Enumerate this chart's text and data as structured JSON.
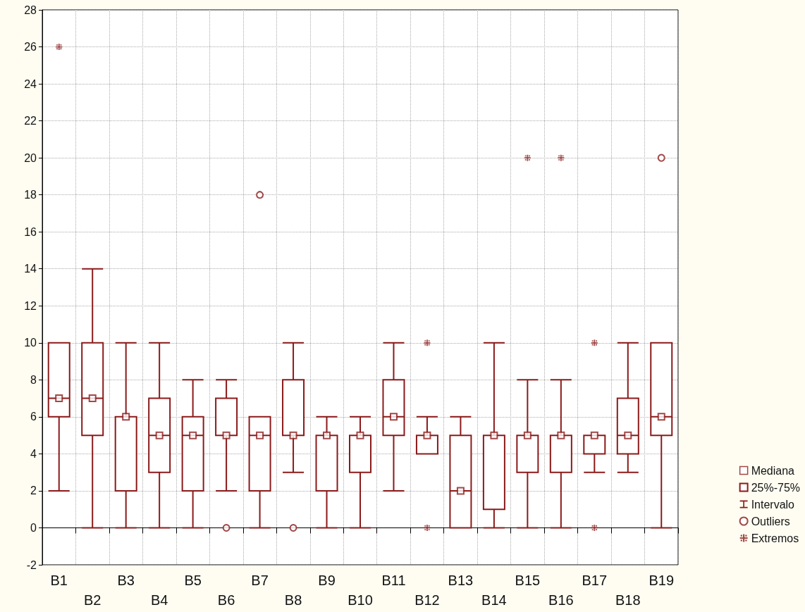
{
  "chart_data": {
    "type": "box",
    "categories": [
      "B1",
      "B2",
      "B3",
      "B4",
      "B5",
      "B6",
      "B7",
      "B8",
      "B9",
      "B10",
      "B11",
      "B12",
      "B13",
      "B14",
      "B15",
      "B16",
      "B17",
      "B18",
      "B19"
    ],
    "ylim": [
      -2,
      28
    ],
    "yticks": [
      -2,
      0,
      2,
      4,
      6,
      8,
      10,
      12,
      14,
      16,
      18,
      20,
      22,
      24,
      26,
      28
    ],
    "grid": true,
    "legend": "right",
    "annotations": [
      "Intervalo"
    ],
    "series": [
      {
        "type": "scatter",
        "name": "Mediana",
        "color": "#8b1a1a",
        "marker": "square",
        "x": [
          "B1",
          "B2",
          "B3",
          "B4",
          "B5",
          "B6",
          "B7",
          "B8",
          "B9",
          "B10",
          "B11",
          "B12",
          "B13",
          "B14",
          "B15",
          "B16",
          "B17",
          "B18",
          "B19"
        ],
        "values": [
          7,
          7,
          6,
          5,
          5,
          5,
          5,
          5,
          5,
          5,
          6,
          5,
          2,
          5,
          5,
          5,
          5,
          5,
          6
        ]
      },
      {
        "name": "25%-75%",
        "color": "#8b1a1a",
        "boxes": [
          {
            "low": 2,
            "q1": 6,
            "median": 7,
            "q3": 10,
            "high": 10
          },
          {
            "low": 0,
            "q1": 5,
            "median": 7,
            "q3": 10,
            "high": 14
          },
          {
            "low": 0,
            "q1": 2,
            "median": 6,
            "q3": 6,
            "high": 10
          },
          {
            "low": 0,
            "q1": 3,
            "median": 5,
            "q3": 7,
            "high": 10
          },
          {
            "low": 0,
            "q1": 2,
            "median": 5,
            "q3": 6,
            "high": 8
          },
          {
            "low": 2,
            "q1": 5,
            "median": 5,
            "q3": 7,
            "high": 8
          },
          {
            "low": 0,
            "q1": 2,
            "median": 5,
            "q3": 6,
            "high": 6
          },
          {
            "low": 3,
            "q1": 5,
            "median": 5,
            "q3": 8,
            "high": 10
          },
          {
            "low": 0,
            "q1": 2,
            "median": 5,
            "q3": 5,
            "high": 6
          },
          {
            "low": 0,
            "q1": 3,
            "median": 5,
            "q3": 5,
            "high": 6
          },
          {
            "low": 2,
            "q1": 5,
            "median": 6,
            "q3": 8,
            "high": 10
          },
          {
            "low": 4,
            "q1": 4,
            "median": 5,
            "q3": 5,
            "high": 6
          },
          {
            "low": 0,
            "q1": 0,
            "median": 2,
            "q3": 5,
            "high": 6
          },
          {
            "low": 0,
            "q1": 1,
            "median": 5,
            "q3": 5,
            "high": 10
          },
          {
            "low": 0,
            "q1": 3,
            "median": 5,
            "q3": 5,
            "high": 8
          },
          {
            "low": 0,
            "q1": 3,
            "median": 5,
            "q3": 5,
            "high": 8
          },
          {
            "low": 3,
            "q1": 4,
            "median": 5,
            "q3": 5,
            "high": 5
          },
          {
            "low": 3,
            "q1": 4,
            "median": 5,
            "q3": 7,
            "high": 10
          },
          {
            "low": 0,
            "q1": 5,
            "median": 6,
            "q3": 10,
            "high": 10
          }
        ]
      },
      {
        "type": "scatter",
        "name": "Outliers",
        "color": "#8b1a1a",
        "marker": "circle",
        "x": [
          "B6",
          "B7",
          "B8",
          "B19"
        ],
        "values": [
          0,
          18,
          0,
          20
        ]
      },
      {
        "type": "scatter",
        "name": "Extremos",
        "color": "#8b1a1a",
        "marker": "cross",
        "x": [
          "B1",
          "B12",
          "B12",
          "B15",
          "B16",
          "B17",
          "B17"
        ],
        "values": [
          26,
          10,
          0,
          20,
          20,
          10,
          0
        ]
      }
    ]
  }
}
